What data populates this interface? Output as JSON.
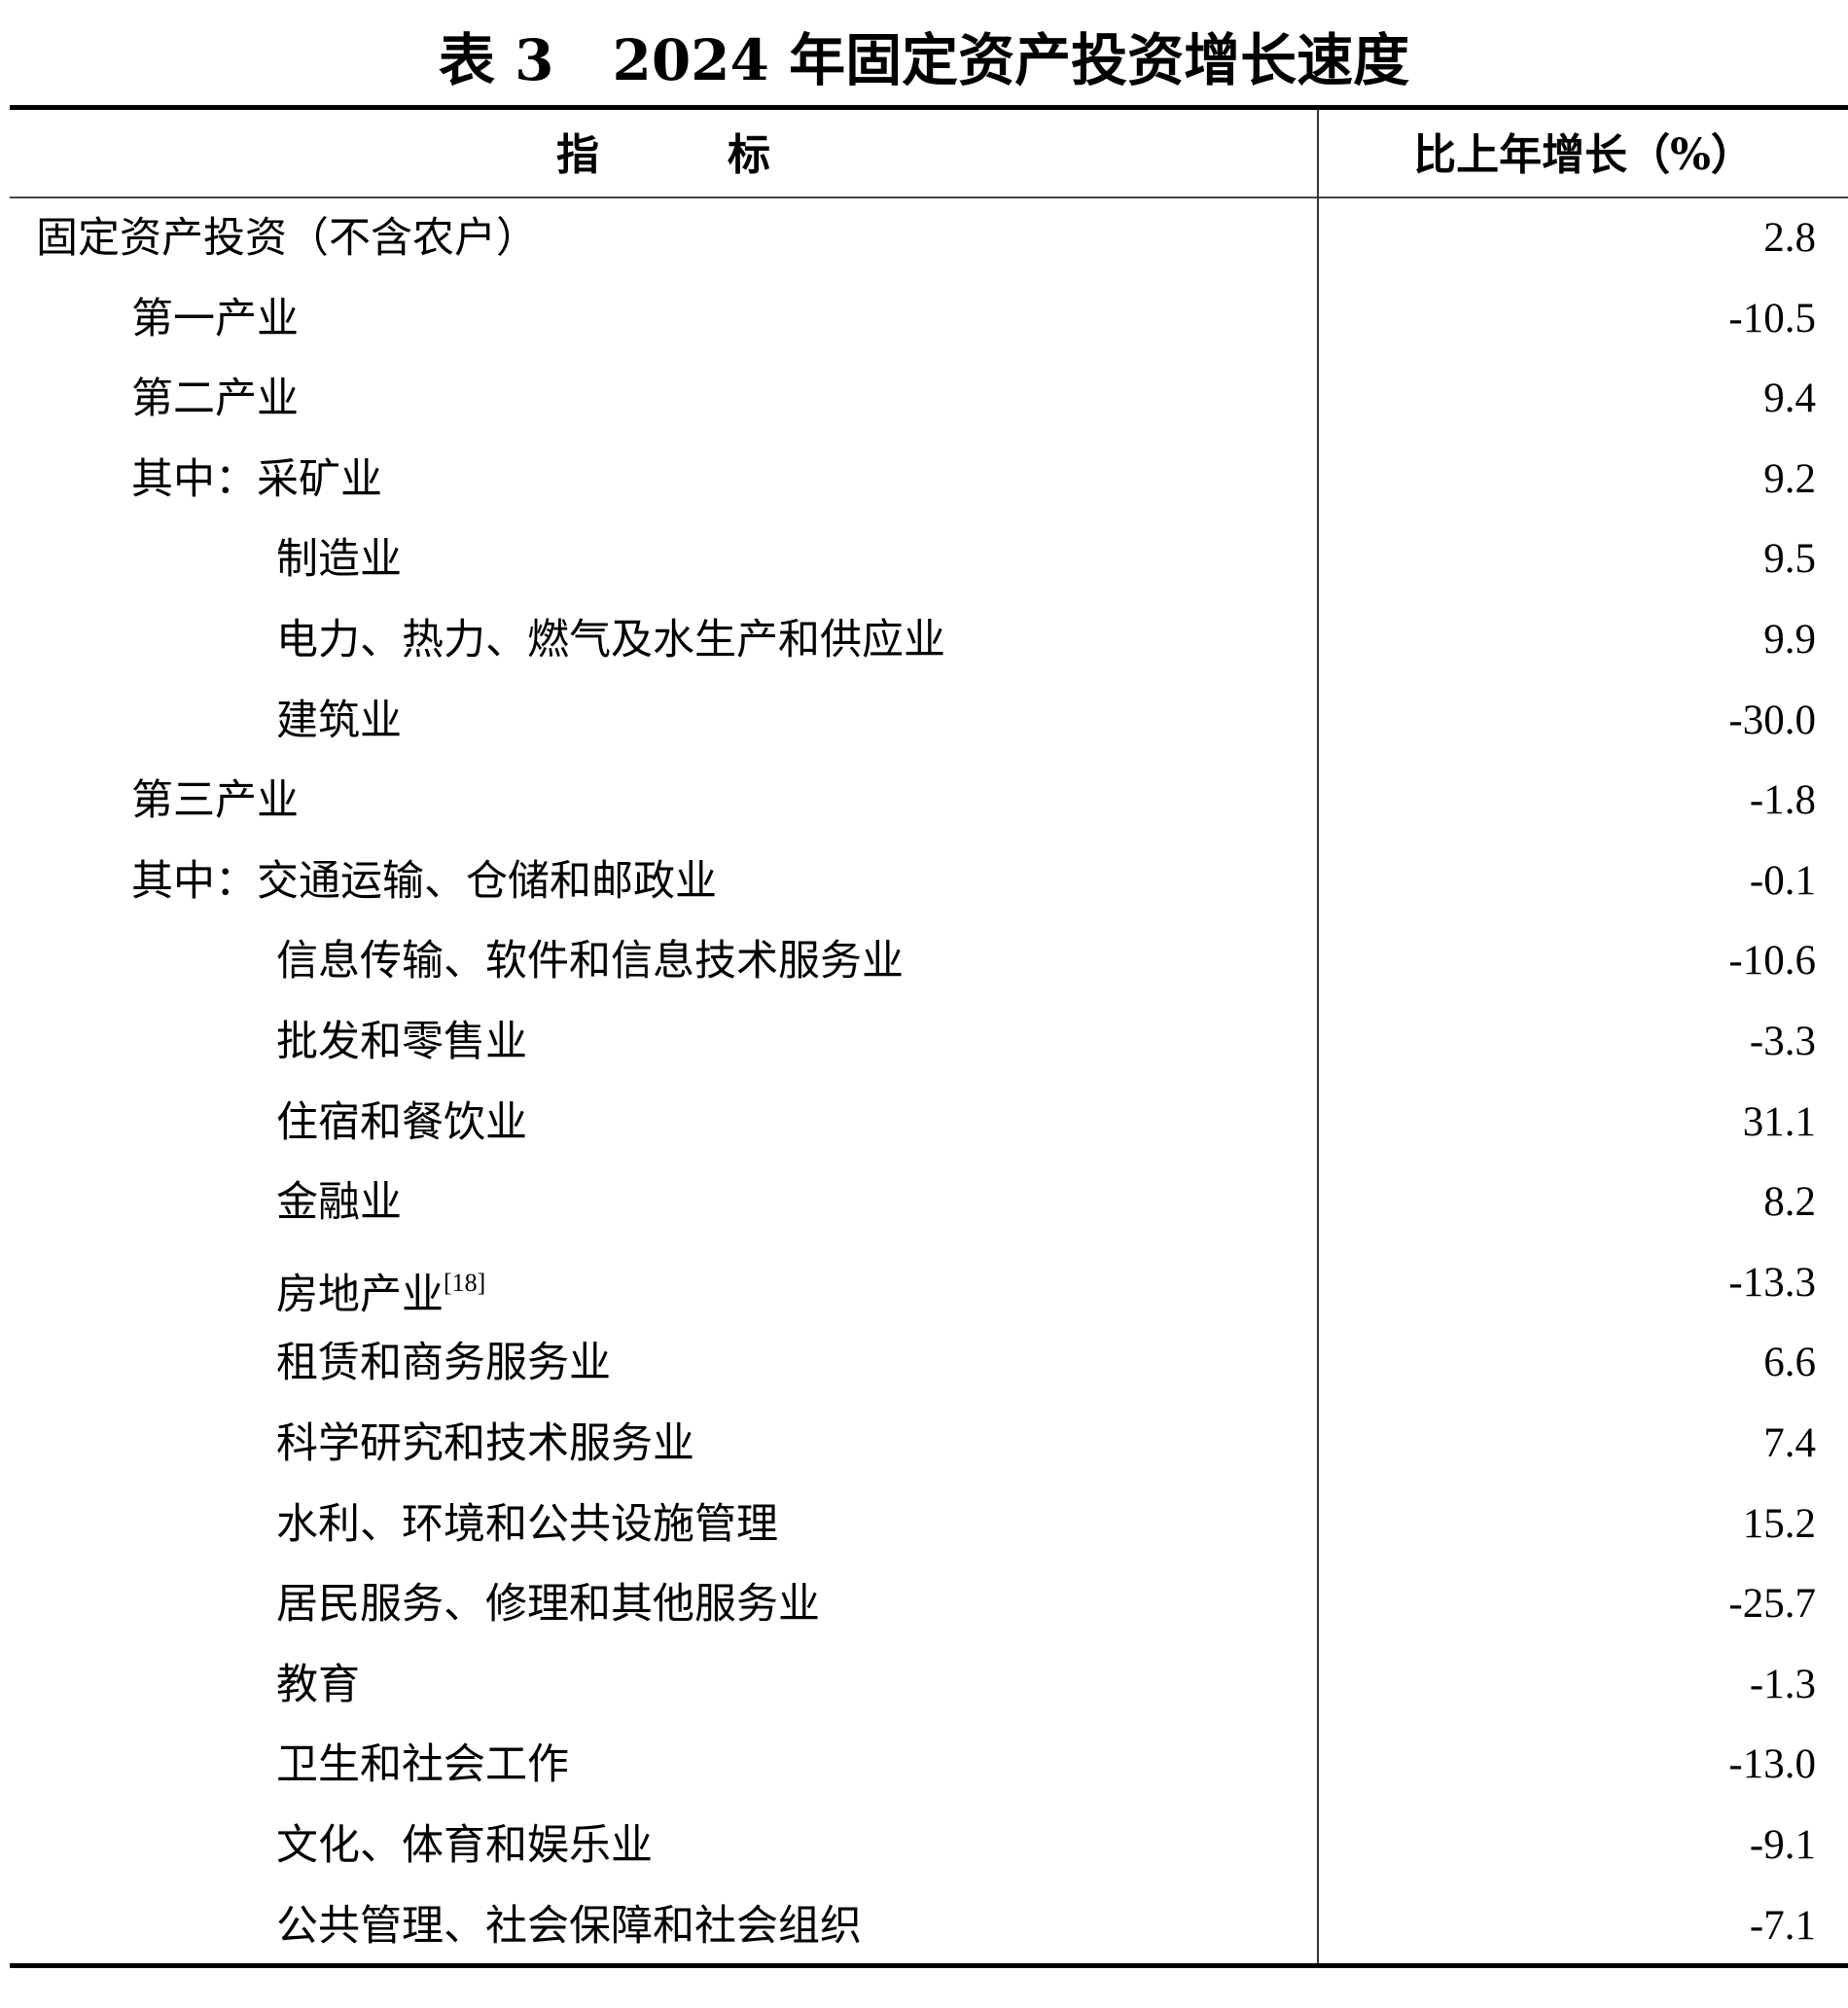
{
  "title": {
    "prefix": "表 3",
    "text": "2024 年固定资产投资增长速度"
  },
  "header": {
    "indicator": "指　　　标",
    "growth": "比上年增长（%）"
  },
  "rows": [
    {
      "label": "固定资产投资（不含农户）",
      "value": "2.8",
      "level": 0
    },
    {
      "label": "第一产业",
      "value": "-10.5",
      "level": 1
    },
    {
      "label": "第二产业",
      "value": "9.4",
      "level": 1
    },
    {
      "label": "其中：采矿业",
      "value": "9.2",
      "level": 1
    },
    {
      "label": "制造业",
      "value": "9.5",
      "level": 2
    },
    {
      "label": "电力、热力、燃气及水生产和供应业",
      "value": "9.9",
      "level": 2
    },
    {
      "label": "建筑业",
      "value": "-30.0",
      "level": 2
    },
    {
      "label": "第三产业",
      "value": "-1.8",
      "level": 1
    },
    {
      "label": "其中：交通运输、仓储和邮政业",
      "value": "-0.1",
      "level": 1
    },
    {
      "label": "信息传输、软件和信息技术服务业",
      "value": "-10.6",
      "level": 2
    },
    {
      "label": "批发和零售业",
      "value": "-3.3",
      "level": 2
    },
    {
      "label": "住宿和餐饮业",
      "value": "31.1",
      "level": 2
    },
    {
      "label": "金融业",
      "value": "8.2",
      "level": 2
    },
    {
      "label": "房地产业",
      "note": "[18]",
      "value": "-13.3",
      "level": 2
    },
    {
      "label": "租赁和商务服务业",
      "value": "6.6",
      "level": 2
    },
    {
      "label": "科学研究和技术服务业",
      "value": "7.4",
      "level": 2
    },
    {
      "label": "水利、环境和公共设施管理",
      "value": "15.2",
      "level": 2
    },
    {
      "label": "居民服务、修理和其他服务业",
      "value": "-25.7",
      "level": 2
    },
    {
      "label": "教育",
      "value": "-1.3",
      "level": 2
    },
    {
      "label": "卫生和社会工作",
      "value": "-13.0",
      "level": 2
    },
    {
      "label": "文化、体育和娱乐业",
      "value": "-9.1",
      "level": 2
    },
    {
      "label": "公共管理、社会保障和社会组织",
      "value": "-7.1",
      "level": 2
    }
  ]
}
